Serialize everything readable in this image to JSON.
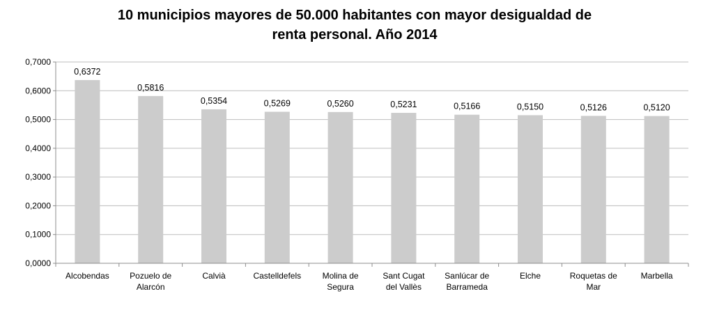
{
  "chart_data": {
    "type": "bar",
    "title_lines": [
      "10 municipios mayores de 50.000 habitantes con mayor desigualdad de",
      "renta personal. Año 2014"
    ],
    "categories": [
      [
        "Alcobendas"
      ],
      [
        "Pozuelo de",
        "Alarcón"
      ],
      [
        "Calvià"
      ],
      [
        "Castelldefels"
      ],
      [
        "Molina de",
        "Segura"
      ],
      [
        "Sant Cugat",
        "del Vallès"
      ],
      [
        "Sanlúcar de",
        "Barrameda"
      ],
      [
        "Elche"
      ],
      [
        "Roquetas de",
        "Mar"
      ],
      [
        "Marbella"
      ]
    ],
    "values": [
      0.6372,
      0.5816,
      0.5354,
      0.5269,
      0.526,
      0.5231,
      0.5166,
      0.515,
      0.5126,
      0.512
    ],
    "value_labels": [
      "0,6372",
      "0,5816",
      "0,5354",
      "0,5269",
      "0,5260",
      "0,5231",
      "0,5166",
      "0,5150",
      "0,5126",
      "0,5120"
    ],
    "yticks": [
      0,
      0.1,
      0.2,
      0.3,
      0.4,
      0.5,
      0.6,
      0.7
    ],
    "ytick_labels": [
      "0,0000",
      "0,1000",
      "0,2000",
      "0,3000",
      "0,4000",
      "0,5000",
      "0,6000",
      "0,7000"
    ],
    "ylim": [
      0,
      0.7
    ],
    "grid": true,
    "bar_color": "#cccccc",
    "legend": "none"
  }
}
